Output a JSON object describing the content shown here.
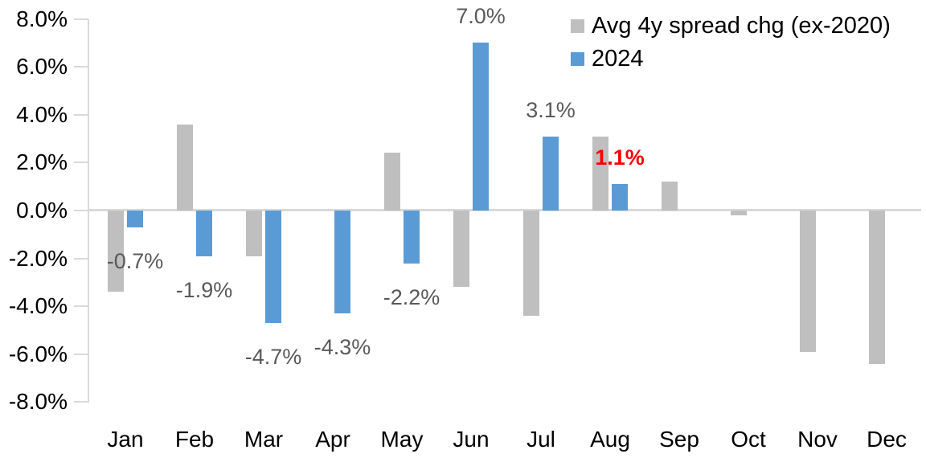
{
  "chart_data": {
    "type": "bar",
    "title": "",
    "categories": [
      "Jan",
      "Feb",
      "Mar",
      "Apr",
      "May",
      "Jun",
      "Jul",
      "Aug",
      "Sep",
      "Oct",
      "Nov",
      "Dec"
    ],
    "series": [
      {
        "name": "Avg 4y spread chg (ex-2020)",
        "color": "#BFBFBF",
        "values": [
          -3.4,
          3.6,
          -1.9,
          0.0,
          2.4,
          -3.2,
          -4.4,
          3.1,
          1.2,
          -0.2,
          -5.9,
          -6.4
        ]
      },
      {
        "name": "2024",
        "color": "#5B9BD5",
        "values": [
          -0.7,
          -1.9,
          -4.7,
          -4.3,
          -2.2,
          7.0,
          3.1,
          1.1,
          null,
          null,
          null,
          null
        ]
      }
    ],
    "data_labels": [
      {
        "category": "Jan",
        "series": "2024",
        "text": "-0.7%",
        "color": "#595959",
        "bold": false
      },
      {
        "category": "Feb",
        "series": "2024",
        "text": "-1.9%",
        "color": "#595959",
        "bold": false
      },
      {
        "category": "Mar",
        "series": "2024",
        "text": "-4.7%",
        "color": "#595959",
        "bold": false
      },
      {
        "category": "Apr",
        "series": "2024",
        "text": "-4.3%",
        "color": "#595959",
        "bold": false
      },
      {
        "category": "May",
        "series": "2024",
        "text": "-2.2%",
        "color": "#595959",
        "bold": false
      },
      {
        "category": "Jun",
        "series": "2024",
        "text": "7.0%",
        "color": "#595959",
        "bold": false
      },
      {
        "category": "Jul",
        "series": "2024",
        "text": "3.1%",
        "color": "#595959",
        "bold": false
      },
      {
        "category": "Aug",
        "series": "2024",
        "text": "1.1%",
        "color": "#FF0000",
        "bold": true
      }
    ],
    "y_axis": {
      "min": -8,
      "max": 8,
      "step": 2,
      "tick_labels": [
        "8.0%",
        "6.0%",
        "4.0%",
        "2.0%",
        "0.0%",
        "-2.0%",
        "-4.0%",
        "-6.0%",
        "-8.0%"
      ],
      "format": "percent"
    },
    "x_axis": {
      "label": ""
    },
    "legend": {
      "position": "top-right",
      "entries": [
        "Avg 4y spread chg (ex-2020)",
        "2024"
      ]
    },
    "gridlines": false,
    "axis_color": "#D9D9D9",
    "axis_text_color": "#000000",
    "data_label_color": "#595959",
    "highlight_label_color": "#FF0000"
  }
}
